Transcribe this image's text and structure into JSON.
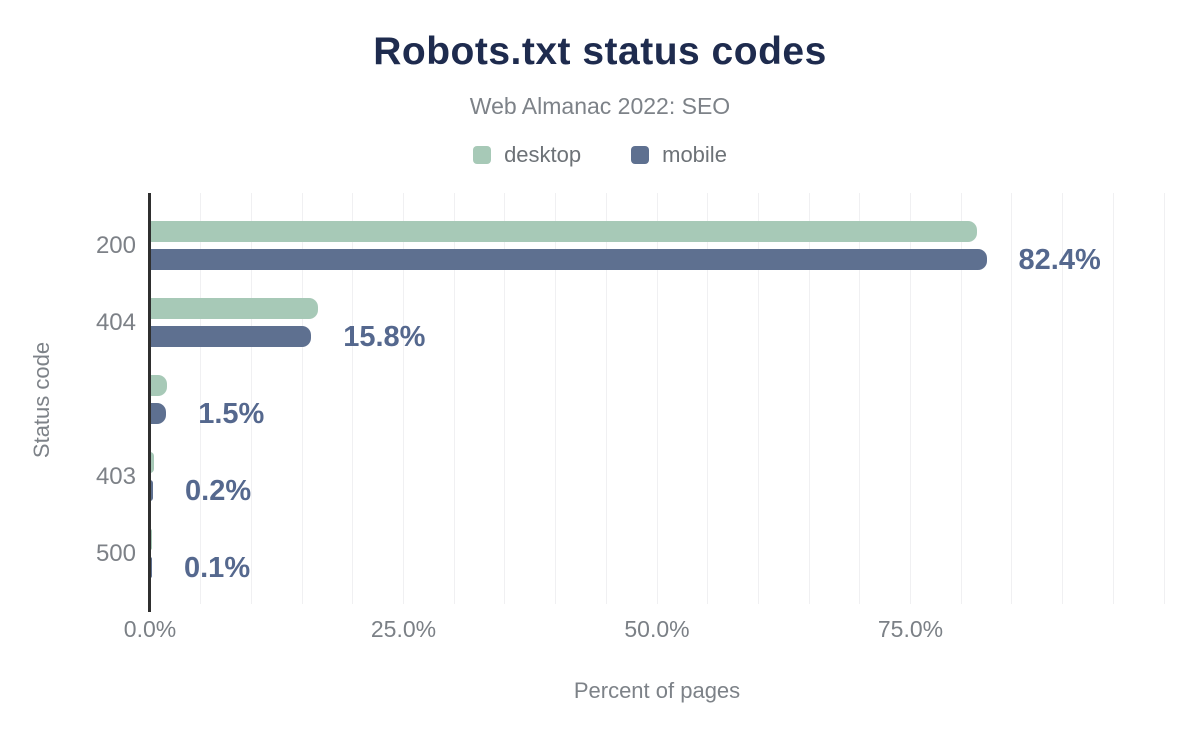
{
  "chart_data": {
    "type": "bar",
    "orientation": "horizontal",
    "title": "Robots.txt status codes",
    "subtitle": "Web Almanac 2022: SEO",
    "xlabel": "Percent of pages",
    "ylabel": "Status code",
    "categories": [
      "200",
      "404",
      "",
      "403",
      "500"
    ],
    "series": [
      {
        "name": "desktop",
        "color": "#a7c9b7",
        "values": [
          81.5,
          16.5,
          1.6,
          0.25,
          0.1
        ]
      },
      {
        "name": "mobile",
        "color": "#5e7090",
        "values": [
          82.4,
          15.8,
          1.5,
          0.2,
          0.1
        ]
      }
    ],
    "value_labels": [
      "82.4%",
      "15.8%",
      "1.5%",
      "0.2%",
      "0.1%"
    ],
    "xlim": [
      0,
      100
    ],
    "x_ticks": [
      {
        "value": 0,
        "label": "0.0%"
      },
      {
        "value": 25,
        "label": "25.0%"
      },
      {
        "value": 50,
        "label": "50.0%"
      },
      {
        "value": 75,
        "label": "75.0%"
      }
    ],
    "grid_interval": 5,
    "grid": "vertical",
    "legend_position": "top"
  },
  "colors": {
    "title": "#1e2b4e",
    "subtitle": "#7d8288",
    "axis_text": "#7b8086",
    "category_text": "#7d8187",
    "value_label": "#55688e",
    "desktop": "#a7c9b7",
    "mobile": "#5e7090",
    "gridline": "#f0f0f2",
    "axis_line": "#2f2f2f"
  }
}
